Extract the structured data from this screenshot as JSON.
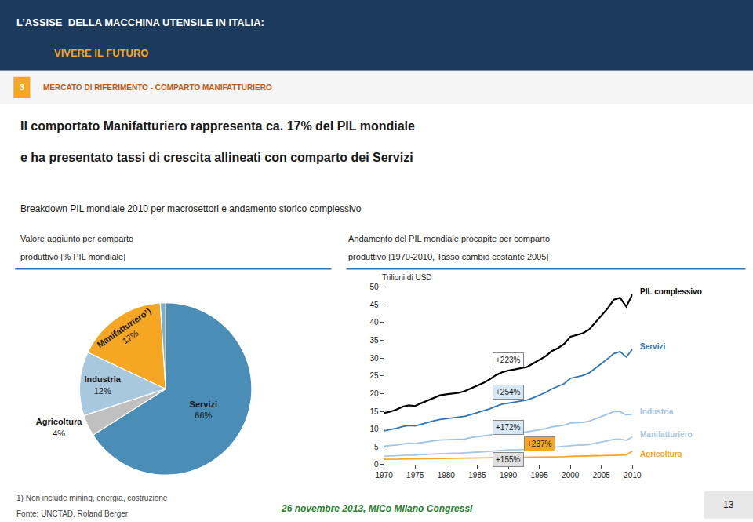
{
  "header": [
    "L’ASSISE  DELLA MACCHINA UTENSILE IN ITALIA:",
    "VIVERE IL FUTURO"
  ],
  "section": {
    "number": "3",
    "text": "MERCATO DI RIFERIMENTO - COMPARTO MANIFATTURIERO"
  },
  "title": [
    "Il comportato Manifatturiero rappresenta ca. 17% del PIL mondiale",
    "e ha presentato tassi di crescita allineati con comparto dei Servizi"
  ],
  "subtitle": "Breakdown PIL mondiale 2010 per macrosettori e andamento storico complessivo",
  "notes": [
    "1) Non include mining, energia, costruzione",
    "Fonte: UNCTAD, Roland Berger"
  ],
  "date": "26 novembre 2013, MiCo Milano Congressi",
  "page": "13",
  "chart_data": [
    {
      "type": "pie",
      "title": [
        "Valore aggiunto per comparto",
        "produttivo [% PIL mondiale]"
      ],
      "categories": [
        "Servizi",
        "Agricoltura",
        "Industria",
        "Manifatturiero¹)",
        null
      ],
      "values": [
        66,
        4,
        12,
        17,
        1
      ],
      "value_labels": [
        "66%",
        "4%",
        "12%",
        "17%",
        null
      ],
      "colors": [
        "#4a8db7",
        "#c0c0c0",
        "#a8c8df",
        "#f5a623",
        "#7aaecc"
      ]
    },
    {
      "type": "line",
      "title": [
        "Andamento del PIL mondiale procapite per comparto",
        "produttivo [1970-2010, Tasso cambio costante 2005]"
      ],
      "y_label": "Trilioni di USD",
      "x": [
        1970,
        1971,
        1972,
        1973,
        1974,
        1975,
        1976,
        1977,
        1978,
        1979,
        1980,
        1981,
        1982,
        1983,
        1984,
        1985,
        1986,
        1987,
        1988,
        1989,
        1990,
        1991,
        1992,
        1993,
        1994,
        1995,
        1996,
        1997,
        1998,
        1999,
        2000,
        2001,
        2002,
        2003,
        2004,
        2005,
        2006,
        2007,
        2008,
        2009,
        2010
      ],
      "series": [
        {
          "name": "PIL complessivo",
          "color": "#000000",
          "values": [
            14.5,
            14.9,
            15.5,
            16.3,
            16.7,
            16.5,
            17.3,
            18.0,
            18.8,
            19.5,
            19.8,
            20.0,
            20.2,
            20.7,
            21.5,
            22.2,
            23.0,
            24.0,
            25.2,
            26.0,
            26.5,
            26.8,
            27.2,
            27.5,
            28.5,
            29.5,
            30.5,
            32.0,
            32.8,
            34.0,
            36.0,
            36.5,
            37.0,
            38.0,
            40.0,
            42.0,
            44.0,
            46.5,
            47.0,
            44.5,
            48.0
          ]
        },
        {
          "name": "Servizi",
          "color": "#2e75b6",
          "values": [
            9.5,
            9.8,
            10.2,
            10.7,
            11.0,
            10.9,
            11.4,
            11.8,
            12.3,
            12.7,
            12.9,
            13.1,
            13.3,
            13.6,
            14.1,
            14.6,
            15.1,
            15.7,
            16.4,
            17.0,
            17.3,
            17.6,
            17.9,
            18.2,
            18.8,
            19.5,
            20.3,
            21.3,
            22.0,
            22.8,
            24.3,
            24.7,
            25.1,
            25.8,
            27.1,
            28.3,
            29.8,
            31.3,
            31.8,
            30.3,
            32.5
          ]
        },
        {
          "name": "Industria",
          "color": "#9dc3e6",
          "values": [
            5.2,
            5.3,
            5.5,
            5.8,
            6.0,
            5.9,
            6.2,
            6.5,
            6.7,
            6.9,
            7.0,
            7.1,
            7.1,
            7.2,
            7.6,
            7.8,
            8.0,
            8.3,
            8.7,
            9.0,
            9.1,
            9.1,
            9.2,
            9.2,
            9.5,
            9.8,
            10.1,
            10.6,
            10.8,
            11.1,
            11.7,
            11.8,
            11.9,
            12.2,
            12.9,
            13.5,
            14.2,
            14.9,
            14.9,
            14.0,
            14.2
          ]
        },
        {
          "name": "Manifatturiero",
          "color": "#aac8df",
          "values": [
            2.3,
            2.35,
            2.45,
            2.6,
            2.7,
            2.65,
            2.8,
            2.9,
            3.0,
            3.1,
            3.15,
            3.2,
            3.2,
            3.25,
            3.4,
            3.5,
            3.6,
            3.75,
            3.9,
            4.1,
            4.15,
            4.15,
            4.2,
            4.2,
            4.35,
            4.5,
            4.65,
            4.9,
            5.0,
            5.15,
            5.4,
            5.45,
            5.5,
            5.65,
            6.0,
            6.3,
            6.7,
            7.1,
            7.15,
            6.8,
            7.8
          ]
        },
        {
          "name": "Agricoltura",
          "color": "#f5a623",
          "values": [
            1.5,
            1.52,
            1.55,
            1.58,
            1.6,
            1.58,
            1.62,
            1.65,
            1.68,
            1.7,
            1.72,
            1.73,
            1.74,
            1.75,
            1.78,
            1.8,
            1.82,
            1.85,
            1.88,
            1.9,
            1.92,
            1.93,
            1.94,
            1.95,
            1.98,
            2.0,
            2.05,
            2.1,
            2.15,
            2.2,
            2.3,
            2.35,
            2.38,
            2.42,
            2.5,
            2.55,
            2.6,
            2.7,
            2.75,
            2.7,
            3.83
          ]
        }
      ],
      "xlim": [
        1970,
        2010
      ],
      "ylim": [
        0,
        50
      ],
      "xticks": [
        1970,
        1975,
        1980,
        1985,
        1990,
        1995,
        2000,
        2005,
        2010
      ],
      "yticks": [
        0,
        5,
        10,
        15,
        20,
        25,
        30,
        35,
        40,
        45,
        50
      ],
      "grid": false,
      "annotations": [
        {
          "text": "+223%",
          "x": 1990,
          "y": 29.5,
          "color": "#ffffff"
        },
        {
          "text": "+254%",
          "x": 1990,
          "y": 20.5,
          "color": "#d6e8f5"
        },
        {
          "text": "+172%",
          "x": 1990,
          "y": 10.5,
          "color": "#d6e8f5"
        },
        {
          "text": "+237%",
          "x": 1995,
          "y": 5.8,
          "color": "#f5a623"
        },
        {
          "text": "+155%",
          "x": 1990,
          "y": 1.5,
          "color": "#e0e0e0"
        }
      ]
    }
  ]
}
